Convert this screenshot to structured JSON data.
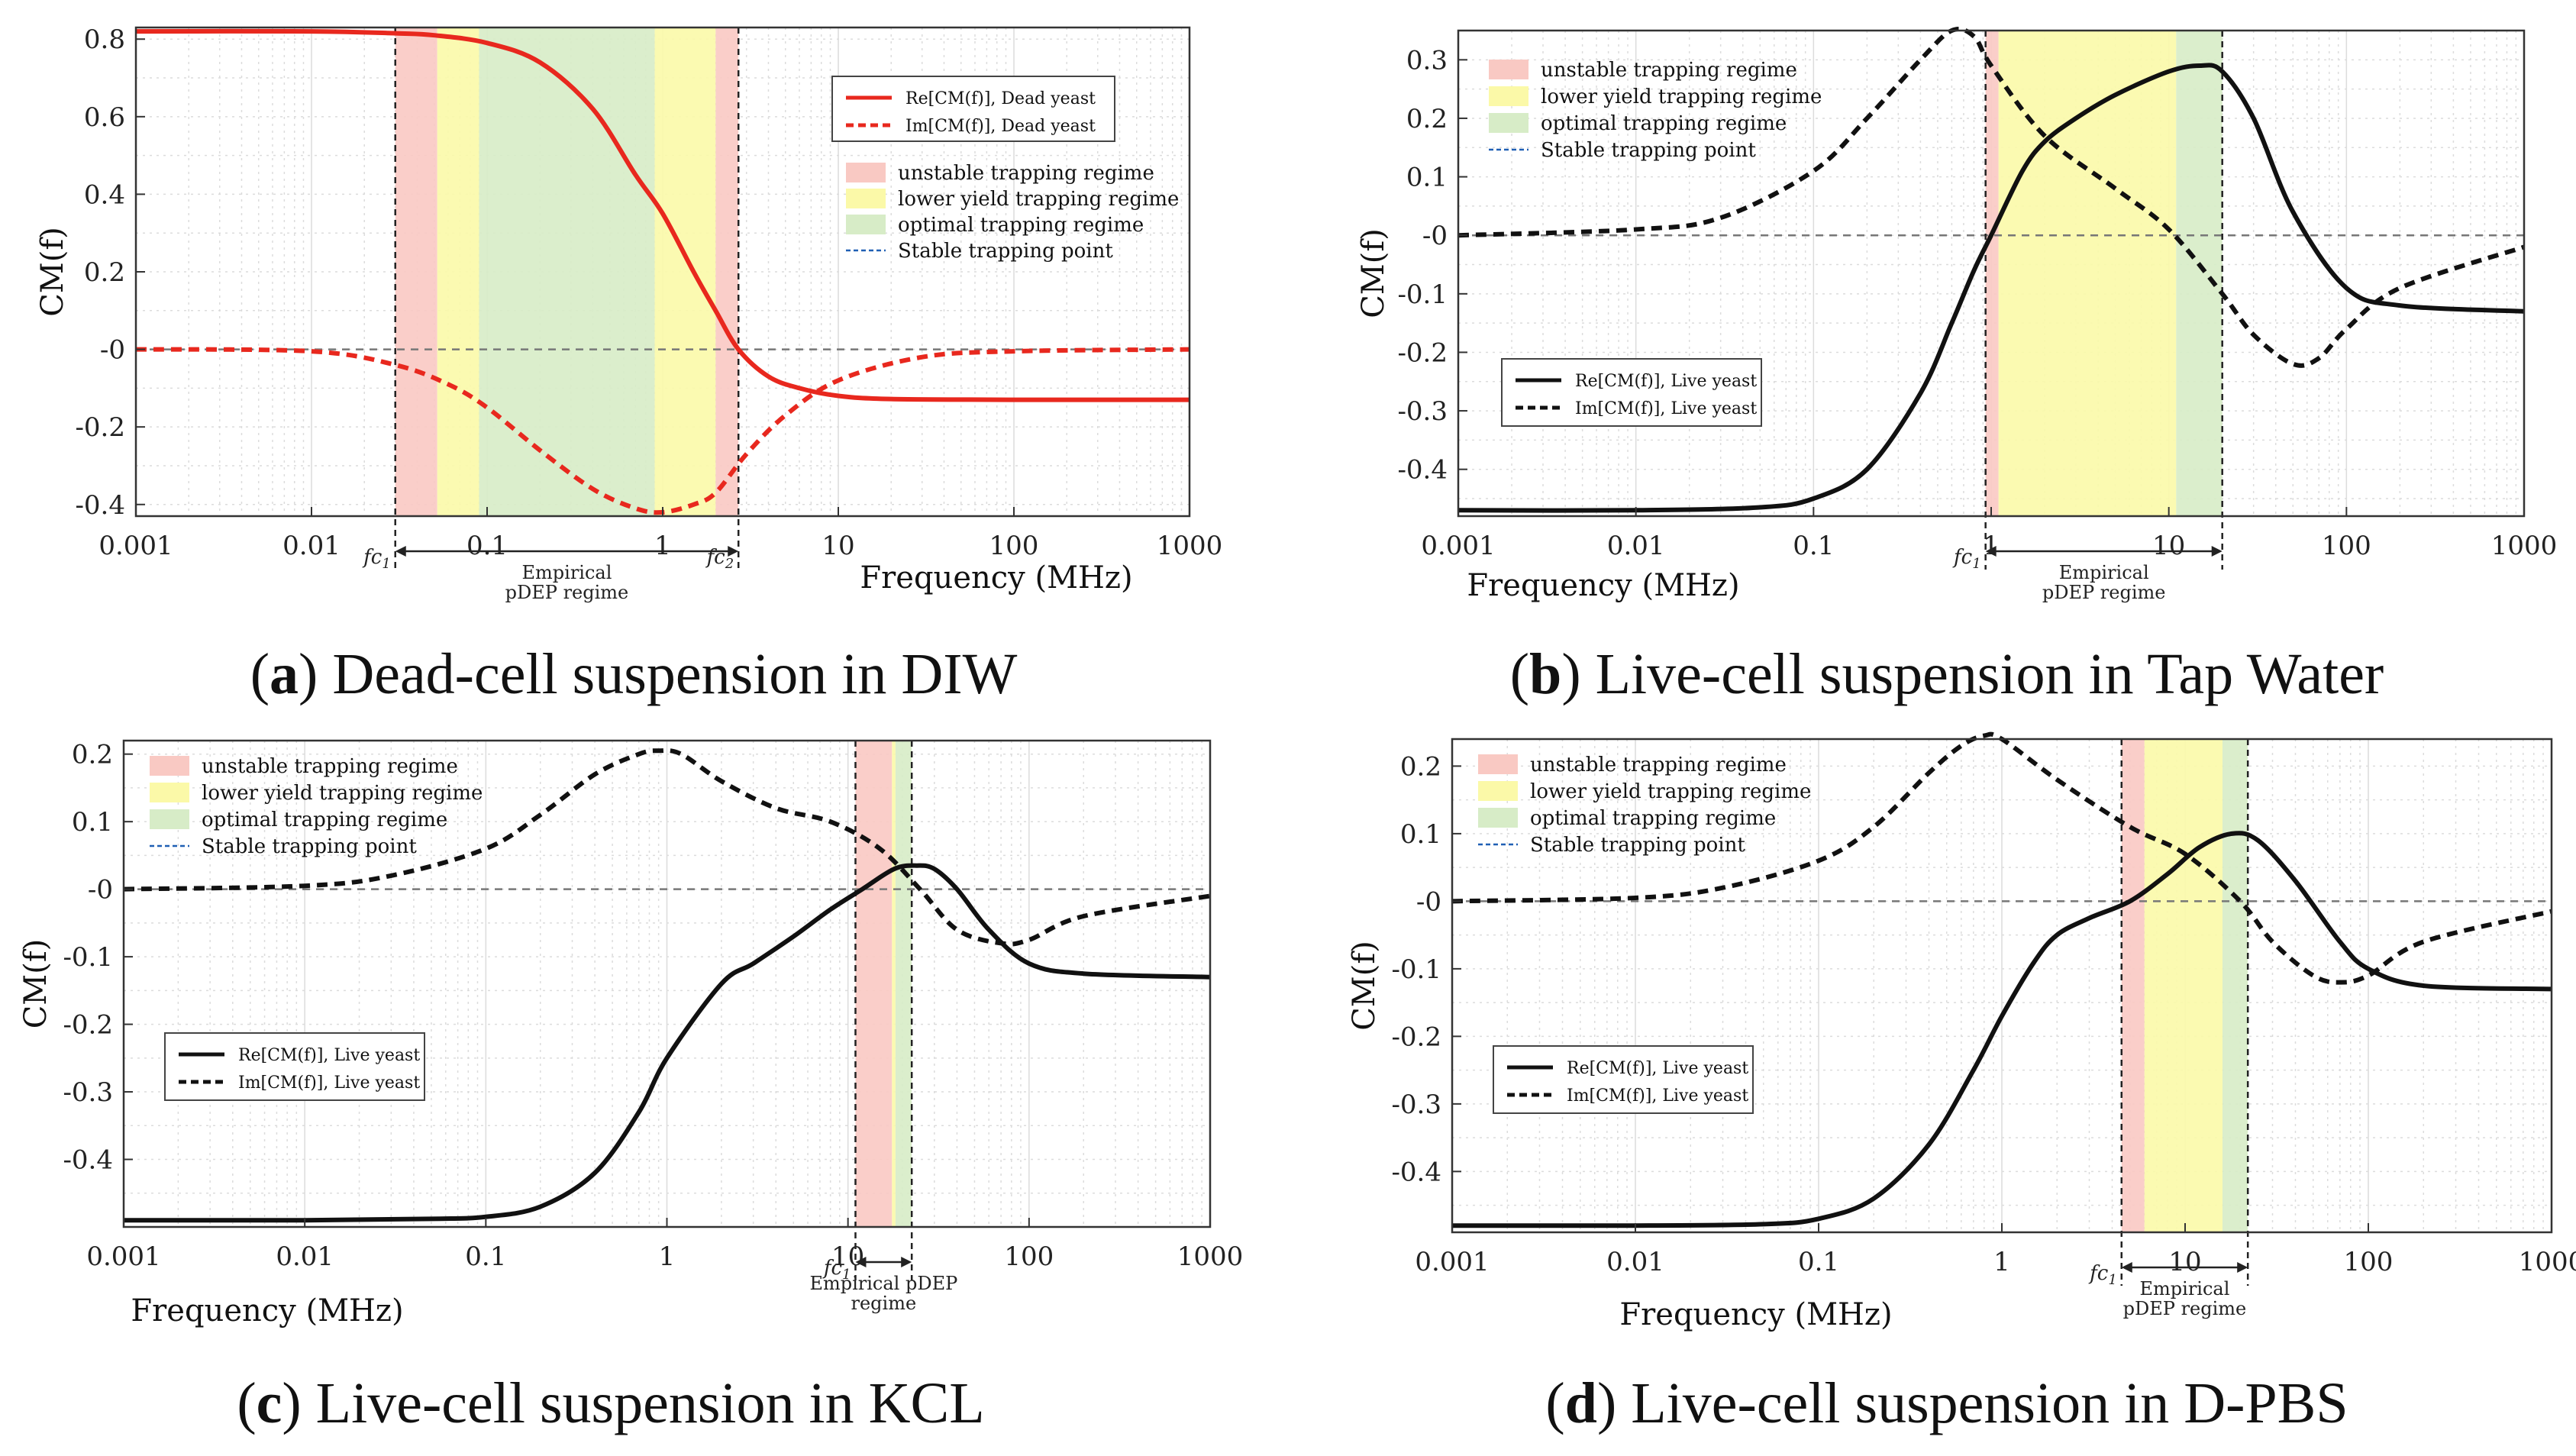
{
  "chart_data": [
    {
      "id": "a",
      "type": "line",
      "ylabel": "CM(f)",
      "xlabel": "Frequency (MHz)",
      "xscale": "log",
      "xlim": [
        0.001,
        1000
      ],
      "ylim": [
        -0.43,
        0.83
      ],
      "x_ticks": [
        0.001,
        0.01,
        0.1,
        1,
        10,
        100,
        1000
      ],
      "x_tick_labels": [
        "0.001",
        "0.01",
        "0.1",
        "1",
        "10",
        "100",
        "1000"
      ],
      "y_ticks": [
        0.8,
        0.6,
        0.4,
        0.2,
        0,
        -0.2,
        -0.4
      ],
      "y_tick_labels": [
        "0.8",
        "0.6",
        "0.4",
        "0.2",
        "-0",
        "-0.2",
        "-0.4"
      ],
      "line_color": "#e8281e",
      "series": [
        {
          "name": "Re[CM(f)], Dead yeast",
          "style": "solid",
          "x": [
            0.001,
            0.01,
            0.03,
            0.05,
            0.1,
            0.2,
            0.4,
            0.7,
            1,
            1.5,
            2,
            2.7,
            4,
            6,
            10,
            20,
            100,
            1000
          ],
          "y": [
            0.82,
            0.82,
            0.815,
            0.81,
            0.79,
            0.74,
            0.62,
            0.45,
            0.35,
            0.2,
            0.1,
            0.0,
            -0.07,
            -0.1,
            -0.12,
            -0.128,
            -0.13,
            -0.13
          ]
        },
        {
          "name": "Im[CM(f)], Dead yeast",
          "style": "dashed",
          "x": [
            0.001,
            0.01,
            0.03,
            0.06,
            0.1,
            0.2,
            0.4,
            0.7,
            1,
            1.5,
            2,
            3,
            5,
            10,
            30,
            100,
            1000
          ],
          "y": [
            0.0,
            -0.005,
            -0.04,
            -0.09,
            -0.15,
            -0.26,
            -0.36,
            -0.41,
            -0.42,
            -0.4,
            -0.37,
            -0.27,
            -0.17,
            -0.08,
            -0.02,
            -0.005,
            0.0
          ]
        }
      ],
      "regimes": [
        {
          "name": "unstable trapping regime",
          "ranges": [
            [
              0.03,
              0.052
            ],
            [
              2.0,
              2.7
            ]
          ]
        },
        {
          "name": "lower yield trapping regime",
          "ranges": [
            [
              0.052,
              0.09
            ],
            [
              0.9,
              2.0
            ]
          ]
        },
        {
          "name": "optimal trapping regime",
          "ranges": [
            [
              0.09,
              0.9
            ]
          ]
        }
      ],
      "stable_trapping_point": "Stable trapping point",
      "markers": [
        0.03,
        2.7
      ],
      "fc_labels": [
        "fc",
        "fc"
      ],
      "fc_subs": [
        "1",
        "2"
      ],
      "pdep_label": [
        "Empirical",
        "pDEP regime"
      ],
      "legend_position": "top-right"
    },
    {
      "id": "b",
      "type": "line",
      "ylabel": "CM(f)",
      "xlabel": "Frequency (MHz)",
      "xscale": "log",
      "xlim": [
        0.001,
        1000
      ],
      "ylim": [
        -0.48,
        0.35
      ],
      "x_ticks": [
        0.001,
        0.01,
        0.1,
        1,
        10,
        100,
        1000
      ],
      "x_tick_labels": [
        "0.001",
        "0.01",
        "0.1",
        "1",
        "10",
        "100",
        "1000"
      ],
      "y_ticks": [
        0.3,
        0.2,
        0.1,
        0,
        -0.1,
        -0.2,
        -0.3,
        -0.4
      ],
      "y_tick_labels": [
        "0.3",
        "0.2",
        "0.1",
        "-0",
        "-0.1",
        "-0.2",
        "-0.3",
        "-0.4"
      ],
      "line_color": "#111111",
      "series": [
        {
          "name": "Re[CM(f)], Live yeast",
          "style": "solid",
          "x": [
            0.001,
            0.01,
            0.05,
            0.1,
            0.2,
            0.4,
            0.6,
            0.8,
            1,
            1.5,
            2,
            3,
            5,
            10,
            15,
            20,
            30,
            50,
            100,
            200,
            1000
          ],
          "y": [
            -0.47,
            -0.47,
            -0.465,
            -0.45,
            -0.4,
            -0.27,
            -0.15,
            -0.06,
            0.0,
            0.11,
            0.16,
            0.2,
            0.24,
            0.28,
            0.29,
            0.28,
            0.2,
            0.04,
            -0.09,
            -0.12,
            -0.13
          ]
        },
        {
          "name": "Im[CM(f)], Live yeast",
          "style": "dashed",
          "x": [
            0.001,
            0.01,
            0.03,
            0.1,
            0.2,
            0.4,
            0.6,
            0.8,
            1,
            2,
            5,
            10,
            20,
            30,
            50,
            70,
            100,
            200,
            1000
          ],
          "y": [
            0.0,
            0.01,
            0.03,
            0.11,
            0.2,
            0.3,
            0.35,
            0.34,
            0.29,
            0.17,
            0.08,
            0.01,
            -0.1,
            -0.17,
            -0.22,
            -0.21,
            -0.16,
            -0.09,
            -0.02
          ]
        }
      ],
      "regimes": [
        {
          "name": "unstable trapping regime",
          "ranges": [
            [
              0.93,
              1.1
            ]
          ]
        },
        {
          "name": "lower yield trapping regime",
          "ranges": [
            [
              1.1,
              11
            ]
          ]
        },
        {
          "name": "optimal trapping regime",
          "ranges": [
            [
              11,
              20
            ]
          ]
        }
      ],
      "stable_trapping_point": "Stable trapping point",
      "markers": [
        0.93,
        20
      ],
      "fc_labels": [
        "fc"
      ],
      "fc_subs": [
        "1"
      ],
      "pdep_label": [
        "Empirical",
        "pDEP regime"
      ],
      "legend_position": "top-left and bottom-left"
    },
    {
      "id": "c",
      "type": "line",
      "ylabel": "CM(f)",
      "xlabel": "Frequency (MHz)",
      "xscale": "log",
      "xlim": [
        0.001,
        1000
      ],
      "ylim": [
        -0.5,
        0.22
      ],
      "x_ticks": [
        0.001,
        0.01,
        0.1,
        1,
        10,
        100,
        1000
      ],
      "x_tick_labels": [
        "0.001",
        "0.01",
        "0.1",
        "1",
        "10",
        "100",
        "1000"
      ],
      "y_ticks": [
        0.2,
        0.1,
        0,
        -0.1,
        -0.2,
        -0.3,
        -0.4
      ],
      "y_tick_labels": [
        "0.2",
        "0.1",
        "-0",
        "-0.1",
        "-0.2",
        "-0.3",
        "-0.4"
      ],
      "line_color": "#111111",
      "series": [
        {
          "name": "Re[CM(f)], Live yeast",
          "style": "solid",
          "x": [
            0.001,
            0.01,
            0.05,
            0.1,
            0.2,
            0.4,
            0.7,
            1,
            2,
            3,
            5,
            8,
            12,
            18,
            24,
            30,
            40,
            60,
            100,
            200,
            1000
          ],
          "y": [
            -0.49,
            -0.49,
            -0.488,
            -0.485,
            -0.47,
            -0.42,
            -0.33,
            -0.25,
            -0.14,
            -0.11,
            -0.07,
            -0.03,
            0.0,
            0.03,
            0.035,
            0.03,
            0.0,
            -0.06,
            -0.11,
            -0.125,
            -0.13
          ]
        },
        {
          "name": "Im[CM(f)], Live yeast",
          "style": "dashed",
          "x": [
            0.001,
            0.01,
            0.03,
            0.1,
            0.2,
            0.4,
            0.7,
            0.9,
            1.2,
            2,
            4,
            8,
            15,
            25,
            40,
            70,
            100,
            200,
            1000
          ],
          "y": [
            0.0,
            0.005,
            0.02,
            0.06,
            0.11,
            0.17,
            0.2,
            0.205,
            0.2,
            0.16,
            0.12,
            0.1,
            0.06,
            0.0,
            -0.06,
            -0.08,
            -0.075,
            -0.04,
            -0.01
          ]
        }
      ],
      "regimes": [
        {
          "name": "unstable trapping regime",
          "ranges": [
            [
              11,
              17.5
            ]
          ]
        },
        {
          "name": "lower yield trapping regime",
          "ranges": [
            [
              17.5,
              18.3
            ]
          ]
        },
        {
          "name": "optimal trapping regime",
          "ranges": [
            [
              18.3,
              22.5
            ]
          ]
        }
      ],
      "stable_trapping_point": "Stable trapping point",
      "markers": [
        11,
        22.5
      ],
      "fc_labels": [
        "fc"
      ],
      "fc_subs": [
        "1"
      ],
      "pdep_label": [
        "Empirical pDEP",
        "regime"
      ],
      "legend_position": "top-left and bottom-left"
    },
    {
      "id": "d",
      "type": "line",
      "ylabel": "CM(f)",
      "xlabel": "Frequency (MHz)",
      "xscale": "log",
      "xlim": [
        0.001,
        1000
      ],
      "ylim": [
        -0.49,
        0.24
      ],
      "x_ticks": [
        0.001,
        0.01,
        0.1,
        1,
        10,
        100,
        1000
      ],
      "x_tick_labels": [
        "0.001",
        "0.01",
        "0.1",
        "1",
        "10",
        "100",
        "1000"
      ],
      "y_ticks": [
        0.2,
        0.1,
        0,
        -0.1,
        -0.2,
        -0.3,
        -0.4
      ],
      "y_tick_labels": [
        "0.2",
        "0.1",
        "-0",
        "-0.1",
        "-0.2",
        "-0.3",
        "-0.4"
      ],
      "line_color": "#111111",
      "series": [
        {
          "name": "Re[CM(f)], Live yeast",
          "style": "solid",
          "x": [
            0.001,
            0.01,
            0.05,
            0.1,
            0.2,
            0.4,
            0.7,
            1,
            1.5,
            2,
            3,
            5,
            8,
            12,
            18,
            25,
            40,
            70,
            100,
            200,
            1000
          ],
          "y": [
            -0.48,
            -0.48,
            -0.478,
            -0.47,
            -0.44,
            -0.36,
            -0.25,
            -0.17,
            -0.09,
            -0.05,
            -0.025,
            0.0,
            0.04,
            0.08,
            0.1,
            0.09,
            0.03,
            -0.06,
            -0.1,
            -0.125,
            -0.13
          ]
        },
        {
          "name": "Im[CM(f)], Live yeast",
          "style": "dashed",
          "x": [
            0.001,
            0.01,
            0.03,
            0.1,
            0.2,
            0.4,
            0.6,
            0.8,
            1,
            2,
            5,
            10,
            20,
            30,
            50,
            70,
            100,
            200,
            1000
          ],
          "y": [
            0.0,
            0.005,
            0.02,
            0.06,
            0.11,
            0.19,
            0.23,
            0.245,
            0.24,
            0.18,
            0.11,
            0.07,
            0.0,
            -0.06,
            -0.11,
            -0.12,
            -0.11,
            -0.06,
            -0.015
          ]
        }
      ],
      "regimes": [
        {
          "name": "unstable trapping regime",
          "ranges": [
            [
              4.5,
              6
            ]
          ]
        },
        {
          "name": "lower yield trapping regime",
          "ranges": [
            [
              6,
              16
            ]
          ]
        },
        {
          "name": "optimal trapping regime",
          "ranges": [
            [
              16,
              22
            ]
          ]
        }
      ],
      "stable_trapping_point": "Stable trapping point",
      "markers": [
        4.5,
        22
      ],
      "fc_labels": [
        "fc"
      ],
      "fc_subs": [
        "1"
      ],
      "pdep_label": [
        "Empirical",
        "pDEP regime"
      ],
      "legend_position": "top-left and bottom-left"
    }
  ],
  "captions": {
    "a": {
      "letter": "a",
      "text": ") Dead-cell suspension in DIW"
    },
    "b": {
      "letter": "b",
      "text": ") Live-cell suspension in Tap Water"
    },
    "c": {
      "letter": "c",
      "text": ") Live-cell suspension in KCL"
    },
    "d": {
      "letter": "d",
      "text": ") Live-cell suspension in D-PBS"
    }
  },
  "colors": {
    "unstable": "#f9c9c3",
    "lower": "#fbf9a8",
    "optimal": "#d7ecc7",
    "stable_line": "#1f5fb4",
    "grid": "#dcdcdc"
  }
}
